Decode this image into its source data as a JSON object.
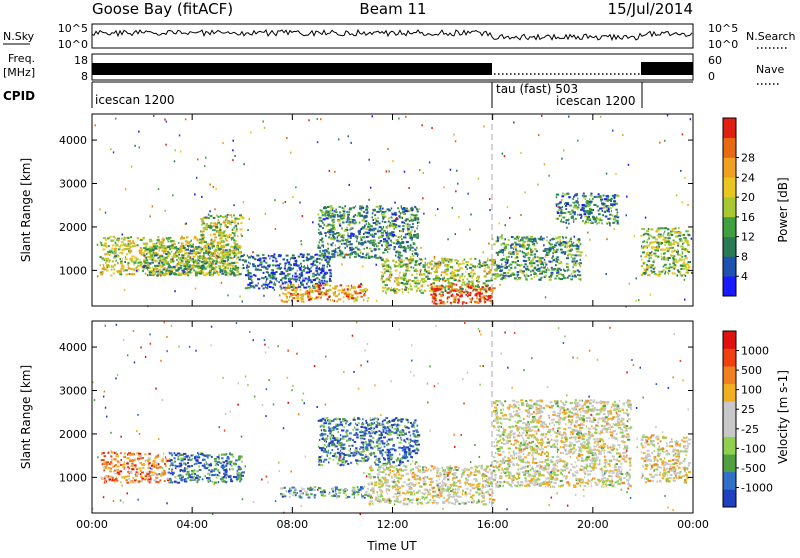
{
  "header": {
    "station": "Goose Bay (fitACF)",
    "beam": "Beam 11",
    "date": "15/Jul/2014"
  },
  "top_panels": {
    "nsky_label": "N.Sky",
    "nsky_ticks": [
      "10^5",
      "10^0"
    ],
    "nsearch_label": "N.Search",
    "nsearch_ticks": [
      "10^5",
      "10^0"
    ],
    "freq_label_1": "Freq.",
    "freq_label_2": "[MHz]",
    "freq_ticks": [
      "8",
      "18"
    ],
    "nave_label": "Nave",
    "nave_ticks": [
      "60",
      "0"
    ],
    "cpid_label": "CPID",
    "cpid_segments": [
      {
        "name": "icescan 1200",
        "start_hour": 0,
        "end_hour": 16
      },
      {
        "name": "tau (fast) 503",
        "start_hour": 16,
        "end_hour": 21.9
      },
      {
        "name": "icescan 1200",
        "start_hour": 16,
        "end_hour": 21.9
      }
    ]
  },
  "chart_data": [
    {
      "type": "heatmap",
      "panel": "power",
      "ylabel": "Slant Range [km]",
      "xlabel": "",
      "x_range_hours": [
        0,
        24
      ],
      "ylim": [
        180,
        4600
      ],
      "yticks": [
        1000,
        2000,
        3000,
        4000
      ],
      "colorbar": {
        "label": "Power [dB]",
        "ticks": [
          "4",
          "8",
          "12",
          "16",
          "20",
          "24",
          "28"
        ],
        "colors": [
          "#1a1aff",
          "#2050b0",
          "#2a7a55",
          "#3fa040",
          "#a8c830",
          "#e8c820",
          "#f0a020",
          "#e86a10",
          "#e02010"
        ]
      },
      "regions": [
        {
          "t": [
            0.3,
            5.8
          ],
          "r": [
            900,
            1800
          ],
          "level": 0.55
        },
        {
          "t": [
            2.0,
            6.0
          ],
          "r": [
            900,
            1600
          ],
          "level": 0.4
        },
        {
          "t": [
            4.3,
            6.0
          ],
          "r": [
            1800,
            2300
          ],
          "level": 0.5
        },
        {
          "t": [
            6.0,
            9.5
          ],
          "r": [
            600,
            1400
          ],
          "level": 0.2
        },
        {
          "t": [
            7.5,
            11.0
          ],
          "r": [
            300,
            700
          ],
          "level": 0.75
        },
        {
          "t": [
            9.0,
            13.0
          ],
          "r": [
            1300,
            2500
          ],
          "level": 0.3
        },
        {
          "t": [
            11.5,
            16.0
          ],
          "r": [
            500,
            1300
          ],
          "level": 0.5
        },
        {
          "t": [
            13.5,
            16.0
          ],
          "r": [
            250,
            700
          ],
          "level": 0.9
        },
        {
          "t": [
            16.0,
            19.5
          ],
          "r": [
            800,
            1800
          ],
          "level": 0.35
        },
        {
          "t": [
            18.5,
            21.0
          ],
          "r": [
            2100,
            2800
          ],
          "level": 0.3
        },
        {
          "t": [
            21.9,
            23.8
          ],
          "r": [
            900,
            2000
          ],
          "level": 0.45
        }
      ]
    },
    {
      "type": "heatmap",
      "panel": "velocity",
      "ylabel": "Slant Range [km]",
      "xlabel": "Time UT",
      "x_range_hours": [
        0,
        24
      ],
      "xticks": [
        "00:00",
        "04:00",
        "08:00",
        "12:00",
        "16:00",
        "20:00",
        "00:00"
      ],
      "ylim": [
        180,
        4600
      ],
      "yticks": [
        1000,
        2000,
        3000,
        4000
      ],
      "colorbar": {
        "label": "Velocity [m s-1]",
        "ticks": [
          "1000",
          "500",
          "100",
          "25",
          "-25",
          "-100",
          "-500",
          "-1000"
        ],
        "colors": [
          "#2040c0",
          "#3070c8",
          "#50a040",
          "#90d050",
          "#c8c8c8",
          "#c8c8c8",
          "#f0b020",
          "#f08020",
          "#f04010",
          "#e01010"
        ]
      },
      "regions": [
        {
          "t": [
            0.3,
            3.0
          ],
          "r": [
            900,
            1600
          ],
          "level": 0.75
        },
        {
          "t": [
            3.0,
            6.0
          ],
          "r": [
            900,
            1600
          ],
          "level": 0.15
        },
        {
          "t": [
            7.5,
            11.0
          ],
          "r": [
            550,
            800
          ],
          "level": 0.3
        },
        {
          "t": [
            9.0,
            13.0
          ],
          "r": [
            1300,
            2400
          ],
          "level": 0.15
        },
        {
          "t": [
            11.0,
            16.0
          ],
          "r": [
            400,
            1300
          ],
          "level": 0.5
        },
        {
          "t": [
            16.0,
            21.5
          ],
          "r": [
            800,
            2800
          ],
          "level": 0.5
        },
        {
          "t": [
            21.9,
            23.8
          ],
          "r": [
            900,
            2000
          ],
          "level": 0.55
        }
      ]
    }
  ]
}
